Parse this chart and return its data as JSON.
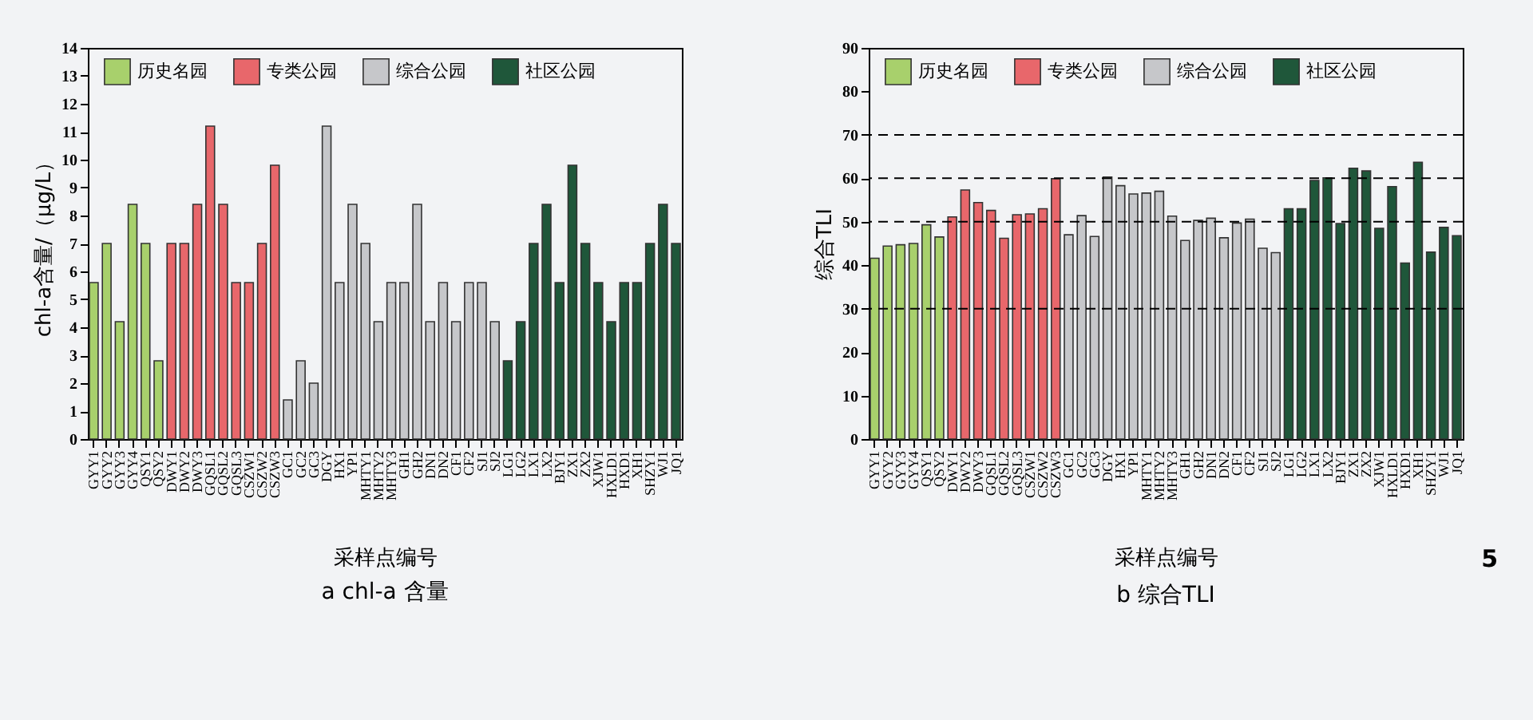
{
  "chart_data": [
    {
      "type": "bar",
      "title": "a chl-a 含量",
      "xlabel": "采样点编号",
      "ylabel": "chl-a含量/（μg/L）",
      "categories": [
        "GYY1",
        "GYY2",
        "GYY3",
        "GYY4",
        "QSY1",
        "QSY2",
        "DWY1",
        "DWY2",
        "DWY3",
        "GQSL1",
        "GQSL2",
        "GQSL3",
        "CSZW1",
        "CSZW2",
        "CSZW3",
        "GC1",
        "GC2",
        "GC3",
        "DGY",
        "HX1",
        "YP1",
        "MHTY1",
        "MHTY2",
        "MHTY3",
        "GH1",
        "GH2",
        "DN1",
        "DN2",
        "CF1",
        "CF2",
        "SJ1",
        "SJ2",
        "LG1",
        "LG2",
        "LX1",
        "LX2",
        "BJY1",
        "ZX1",
        "ZX2",
        "XJW1",
        "HXLD1",
        "HXD1",
        "XH1",
        "SHZY1",
        "WJ1",
        "JQ1"
      ],
      "series": [
        {
          "name": "历史名园",
          "color": "#a8d06c",
          "values": [
            5.6,
            7,
            4.2,
            8.4,
            7,
            2.8,
            null,
            null,
            null,
            null,
            null,
            null,
            null,
            null,
            null,
            null,
            null,
            null,
            null,
            null,
            null,
            null,
            null,
            null,
            null,
            null,
            null,
            null,
            null,
            null,
            null,
            null,
            null,
            null,
            null,
            null,
            null,
            null,
            null,
            null,
            null,
            null,
            null,
            null,
            null,
            null
          ]
        },
        {
          "name": "专类公园",
          "color": "#e8676b",
          "values": [
            null,
            null,
            null,
            null,
            null,
            null,
            7,
            7,
            8.4,
            11.2,
            8.4,
            5.6,
            5.6,
            7,
            9.8,
            null,
            null,
            null,
            null,
            null,
            null,
            null,
            null,
            null,
            null,
            null,
            null,
            null,
            null,
            null,
            null,
            null,
            null,
            null,
            null,
            null,
            null,
            null,
            null,
            null,
            null,
            null,
            null,
            null,
            null,
            null
          ]
        },
        {
          "name": "综合公园",
          "color": "#c6c7ca",
          "values": [
            null,
            null,
            null,
            null,
            null,
            null,
            null,
            null,
            null,
            null,
            null,
            null,
            null,
            null,
            null,
            1.4,
            2.8,
            2.0,
            11.2,
            5.6,
            8.4,
            7,
            4.2,
            5.6,
            5.6,
            8.4,
            4.2,
            5.6,
            4.2,
            5.6,
            5.6,
            4.2,
            null,
            null,
            null,
            null,
            null,
            null,
            null,
            null,
            null,
            null,
            null,
            null,
            null,
            null
          ]
        },
        {
          "name": "社区公园",
          "color": "#1f573a",
          "values": [
            null,
            null,
            null,
            null,
            null,
            null,
            null,
            null,
            null,
            null,
            null,
            null,
            null,
            null,
            null,
            null,
            null,
            null,
            null,
            null,
            null,
            null,
            null,
            null,
            null,
            null,
            null,
            null,
            null,
            null,
            null,
            null,
            2.8,
            4.2,
            7,
            8.4,
            5.6,
            9.8,
            7,
            5.6,
            4.2,
            5.6,
            5.6,
            7,
            8.4,
            7
          ]
        }
      ],
      "ylim": [
        0,
        14
      ],
      "yticks": [
        0,
        1,
        2,
        3,
        4,
        5,
        6,
        7,
        8,
        9,
        10,
        11,
        12,
        13,
        14
      ],
      "legend": "top"
    },
    {
      "type": "bar",
      "title": "b 综合TLI",
      "xlabel": "采样点编号",
      "ylabel": "综合TLI",
      "categories": [
        "GYY1",
        "GYY2",
        "GYY3",
        "GYY4",
        "QSY1",
        "QSY2",
        "DWY1",
        "DWY2",
        "DWY3",
        "GQSL1",
        "GQSL2",
        "GQSL3",
        "CSZW1",
        "CSZW2",
        "CSZW3",
        "GC1",
        "GC2",
        "GC3",
        "DGY",
        "HX1",
        "YP1",
        "MHTY1",
        "MHTY2",
        "MHTY3",
        "GH1",
        "GH2",
        "DN1",
        "DN2",
        "CF1",
        "CF2",
        "SJ1",
        "SJ2",
        "LG1",
        "LG2",
        "LX1",
        "LX2",
        "BJY1",
        "ZX1",
        "ZX2",
        "XJW1",
        "HXLD1",
        "HXD1",
        "XH1",
        "SHZY1",
        "WJ1",
        "JQ1"
      ],
      "series": [
        {
          "name": "历史名园",
          "color": "#a8d06c",
          "values": [
            41.6,
            44.4,
            44.7,
            45.0,
            49.3,
            46.5,
            null,
            null,
            null,
            null,
            null,
            null,
            null,
            null,
            null,
            null,
            null,
            null,
            null,
            null,
            null,
            null,
            null,
            null,
            null,
            null,
            null,
            null,
            null,
            null,
            null,
            null,
            null,
            null,
            null,
            null,
            null,
            null,
            null,
            null,
            null,
            null,
            null,
            null,
            null,
            null
          ]
        },
        {
          "name": "专类公园",
          "color": "#e8676b",
          "values": [
            null,
            null,
            null,
            null,
            null,
            null,
            51.1,
            57.3,
            54.4,
            52.6,
            46.2,
            51.6,
            51.8,
            53.0,
            59.9,
            null,
            null,
            null,
            null,
            null,
            null,
            null,
            null,
            null,
            null,
            null,
            null,
            null,
            null,
            null,
            null,
            null,
            null,
            null,
            null,
            null,
            null,
            null,
            null,
            null,
            null,
            null,
            null,
            null,
            null,
            null
          ]
        },
        {
          "name": "综合公园",
          "color": "#c6c7ca",
          "values": [
            null,
            null,
            null,
            null,
            null,
            null,
            null,
            null,
            null,
            null,
            null,
            null,
            null,
            null,
            null,
            47.0,
            51.4,
            46.6,
            60.3,
            58.3,
            56.4,
            56.6,
            57.0,
            51.3,
            45.7,
            50.3,
            50.8,
            46.3,
            49.7,
            50.6,
            43.9,
            42.9,
            null,
            null,
            null,
            null,
            null,
            null,
            null,
            null,
            null,
            null,
            null,
            null,
            null,
            null
          ]
        },
        {
          "name": "社区公园",
          "color": "#1f573a",
          "values": [
            null,
            null,
            null,
            null,
            null,
            null,
            null,
            null,
            null,
            null,
            null,
            null,
            null,
            null,
            null,
            null,
            null,
            null,
            null,
            null,
            null,
            null,
            null,
            null,
            null,
            null,
            null,
            null,
            null,
            null,
            null,
            null,
            53.0,
            53.0,
            59.5,
            60.1,
            49.6,
            62.3,
            61.7,
            48.5,
            58.1,
            40.5,
            63.7,
            43.0,
            48.7,
            46.8
          ]
        }
      ],
      "ylim": [
        0,
        90
      ],
      "yticks": [
        0,
        10,
        20,
        30,
        40,
        50,
        60,
        70,
        80,
        90
      ],
      "legend": "top",
      "ref_lines": [
        {
          "axis": "y",
          "value": 30,
          "line_style": "dashed"
        },
        {
          "axis": "y",
          "value": 50,
          "line_style": "dashed"
        },
        {
          "axis": "y",
          "value": 60,
          "line_style": "dashed"
        },
        {
          "axis": "y",
          "value": 70,
          "line_style": "dashed"
        }
      ],
      "annotations": [
        "5"
      ]
    }
  ]
}
